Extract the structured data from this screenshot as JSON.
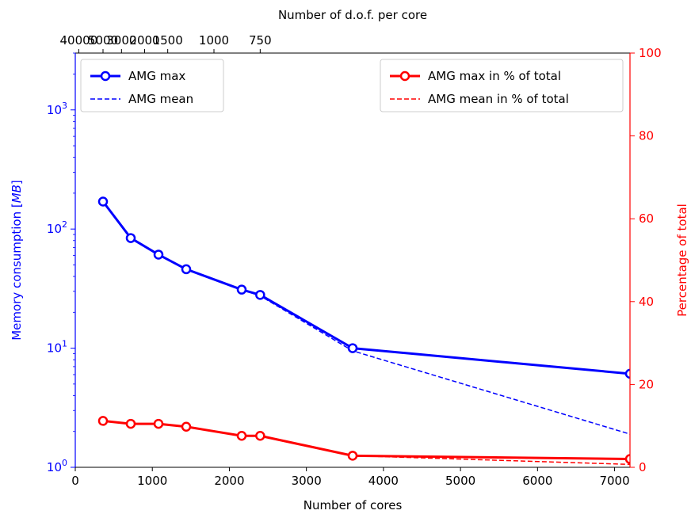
{
  "chart_data": {
    "type": "line",
    "xlabel": "Number of cores",
    "x_top_label": "Number of d.o.f. per core",
    "ylabel_left": "Memory consumption [MB]",
    "ylabel_left_main": "Memory consumption [",
    "ylabel_left_unit": "MB",
    "ylabel_left_close": "]",
    "ylabel_right": "Percentage of total",
    "xlim": [
      0,
      7200
    ],
    "ylim_left": [
      1,
      3000
    ],
    "ylim_left_scale": "log",
    "ylim_right": [
      0,
      100
    ],
    "x_ticks": [
      0,
      1000,
      2000,
      3000,
      4000,
      5000,
      6000,
      7000
    ],
    "x_tick_labels": [
      "0",
      "1000",
      "2000",
      "3000",
      "4000",
      "5000",
      "6000",
      "7000"
    ],
    "top_ticks": [
      {
        "label": "40000",
        "x": 45
      },
      {
        "label": "5000",
        "x": 360
      },
      {
        "label": "3000",
        "x": 600
      },
      {
        "label": "2000",
        "x": 900
      },
      {
        "label": "1500",
        "x": 1200
      },
      {
        "label": "1000",
        "x": 1800
      },
      {
        "label": "750",
        "x": 2400
      }
    ],
    "left_ticks": [
      {
        "value": 1,
        "base": "10",
        "exp": "0"
      },
      {
        "value": 10,
        "base": "10",
        "exp": "1"
      },
      {
        "value": 100,
        "base": "10",
        "exp": "2"
      },
      {
        "value": 1000,
        "base": "10",
        "exp": "3"
      }
    ],
    "right_ticks": [
      0,
      20,
      40,
      60,
      80,
      100
    ],
    "right_tick_labels": [
      "0",
      "20",
      "40",
      "60",
      "80",
      "100"
    ],
    "x": [
      360,
      720,
      1080,
      1440,
      2160,
      2400,
      3600,
      7200
    ],
    "series": [
      {
        "name": "AMG max",
        "axis": "left",
        "color": "#0000ff",
        "style": "solid-markers",
        "values": [
          170,
          84,
          61,
          46,
          31,
          28,
          10,
          6.1
        ]
      },
      {
        "name": "AMG mean",
        "axis": "left",
        "color": "#0000ff",
        "style": "dashed",
        "values": [
          170,
          84,
          61,
          46,
          31,
          27.5,
          9.5,
          1.9
        ]
      },
      {
        "name": "AMG max in % of total",
        "axis": "right",
        "color": "#ff0000",
        "style": "solid-markers",
        "values": [
          11.2,
          10.5,
          10.5,
          9.8,
          7.6,
          7.6,
          2.8,
          2.0
        ]
      },
      {
        "name": "AMG mean in % of total",
        "axis": "right",
        "color": "#ff0000",
        "style": "dashed",
        "values": [
          11.2,
          10.5,
          10.5,
          9.8,
          7.6,
          7.6,
          2.8,
          0.7
        ]
      }
    ],
    "legend_left": [
      "AMG max",
      "AMG mean"
    ],
    "legend_right": [
      "AMG max in % of total",
      "AMG mean in % of total"
    ],
    "legend_left_placement": "upper left",
    "legend_right_placement": "upper right",
    "grid": false
  },
  "colors": {
    "left_axis": "#0000ff",
    "right_axis": "#ff0000",
    "frame": "#000000"
  }
}
